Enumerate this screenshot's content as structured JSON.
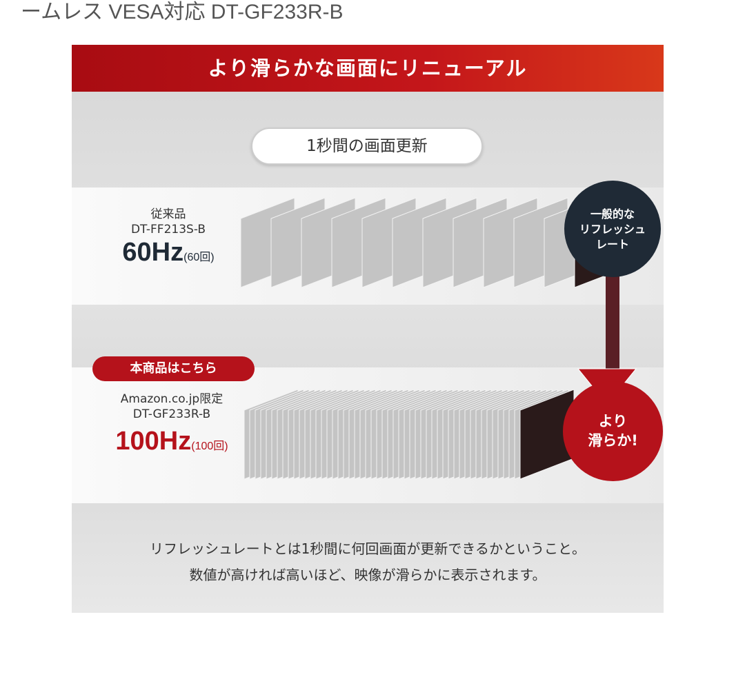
{
  "page_title": "ームレス VESA対応 DT-GF233R-B",
  "banner": "より滑らかな画面にリニューアル",
  "pill": "1秒間の画面更新",
  "old": {
    "label": "従来品",
    "model": "DT-FF213S-B",
    "hz": "60Hz",
    "count": "(60回)",
    "circle": [
      "一般的な",
      "リフレッシュ",
      "レート"
    ]
  },
  "new": {
    "badge": "本商品はこちら",
    "label": "Amazon.co.jp限定",
    "model": "DT-GF233R-B",
    "hz": "100Hz",
    "count": "(100回)",
    "circle": [
      "より",
      "滑らか!"
    ]
  },
  "note": [
    "リフレッシュレートとは1秒間に何回画面が更新できるかということ。",
    "数値が高ければ高いほど、映像が滑らかに表示されます。"
  ],
  "colors": {
    "brand_red": "#b5121b",
    "dark_navy": "#1f2a36",
    "hz_red": "#b5121b"
  }
}
